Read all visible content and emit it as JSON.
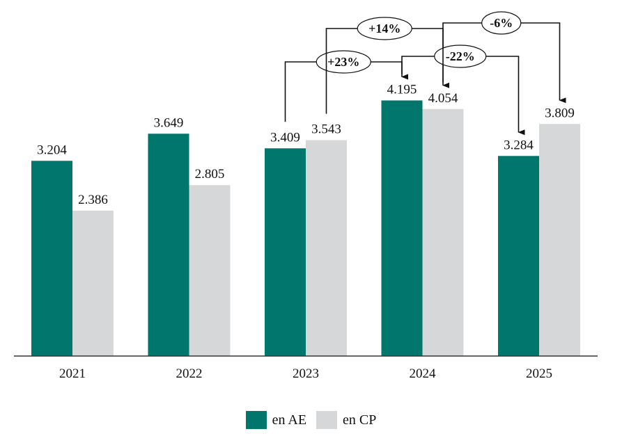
{
  "chart_data": {
    "type": "bar",
    "categories": [
      "2021",
      "2022",
      "2023",
      "2024",
      "2025"
    ],
    "series": [
      {
        "name": "en AE",
        "color": "#00766d",
        "values": [
          3204,
          3649,
          3409,
          4195,
          3284
        ],
        "labels": [
          "3.204",
          "3.649",
          "3.409",
          "4.195",
          "3.284"
        ]
      },
      {
        "name": "en CP",
        "color": "#d6d7d8",
        "values": [
          2386,
          2805,
          3543,
          4054,
          3809
        ],
        "labels": [
          "2.386",
          "2.805",
          "3.543",
          "4.054",
          "3.809"
        ]
      }
    ],
    "ylim": [
      0,
      4200
    ],
    "grid": false,
    "legend": "bottom-center",
    "annotations": [
      {
        "label": "+23%",
        "from": {
          "category": "2023",
          "series": 0
        },
        "to": {
          "category": "2024",
          "series": 0
        }
      },
      {
        "label": "+14%",
        "from": {
          "category": "2023",
          "series": 1
        },
        "to": {
          "category": "2024",
          "series": 1
        }
      },
      {
        "label": "-22%",
        "from": {
          "category": "2024",
          "series": 0
        },
        "to": {
          "category": "2025",
          "series": 0
        }
      },
      {
        "label": "-6%",
        "from": {
          "category": "2024",
          "series": 1
        },
        "to": {
          "category": "2025",
          "series": 1
        }
      }
    ]
  }
}
